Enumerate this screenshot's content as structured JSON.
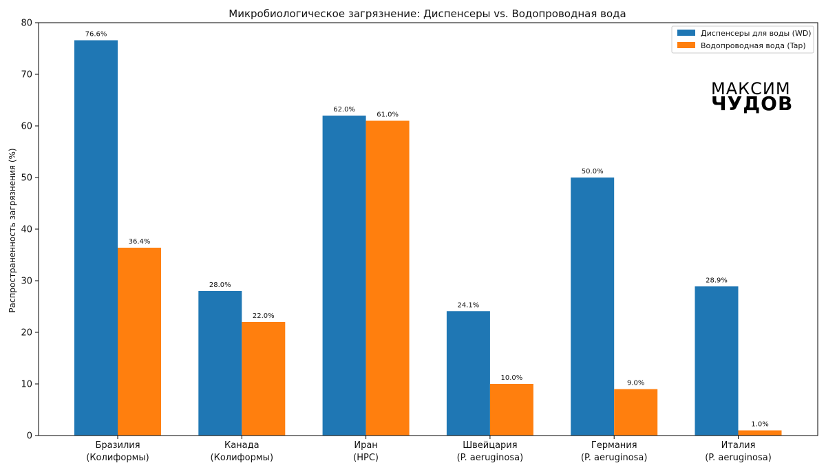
{
  "chart_data": {
    "type": "bar",
    "title": "Микробиологическое загрязнение: Диспенсеры vs. Водопроводная вода",
    "xlabel": "",
    "ylabel": "Распространенность загрязнения (%)",
    "ylim": [
      0,
      80
    ],
    "yticks": [
      0,
      10,
      20,
      30,
      40,
      50,
      60,
      70,
      80
    ],
    "grid": false,
    "legend_position": "top-right",
    "categories": [
      [
        "Бразилия",
        "(Колиформы)"
      ],
      [
        "Канада",
        "(Колиформы)"
      ],
      [
        "Иран",
        "(HPC)"
      ],
      [
        "Швейцария",
        "(P. aeruginosa)"
      ],
      [
        "Германия",
        "(P. aeruginosa)"
      ],
      [
        "Италия",
        "(P. aeruginosa)"
      ]
    ],
    "series": [
      {
        "name": "Диспенсеры для воды (WD)",
        "color": "#1f77b4",
        "values": [
          76.6,
          28.0,
          62.0,
          24.1,
          50.0,
          28.9
        ],
        "labels": [
          "76.6%",
          "28.0%",
          "62.0%",
          "24.1%",
          "50.0%",
          "28.9%"
        ]
      },
      {
        "name": "Водопроводная вода (Tap)",
        "color": "#ff7f0e",
        "values": [
          36.4,
          22.0,
          61.0,
          10.0,
          9.0,
          1.0
        ],
        "labels": [
          "36.4%",
          "22.0%",
          "61.0%",
          "10.0%",
          "9.0%",
          "1.0%"
        ]
      }
    ]
  },
  "watermark": {
    "line1": "МАКСИМ",
    "line2": "ЧУДОВ"
  }
}
